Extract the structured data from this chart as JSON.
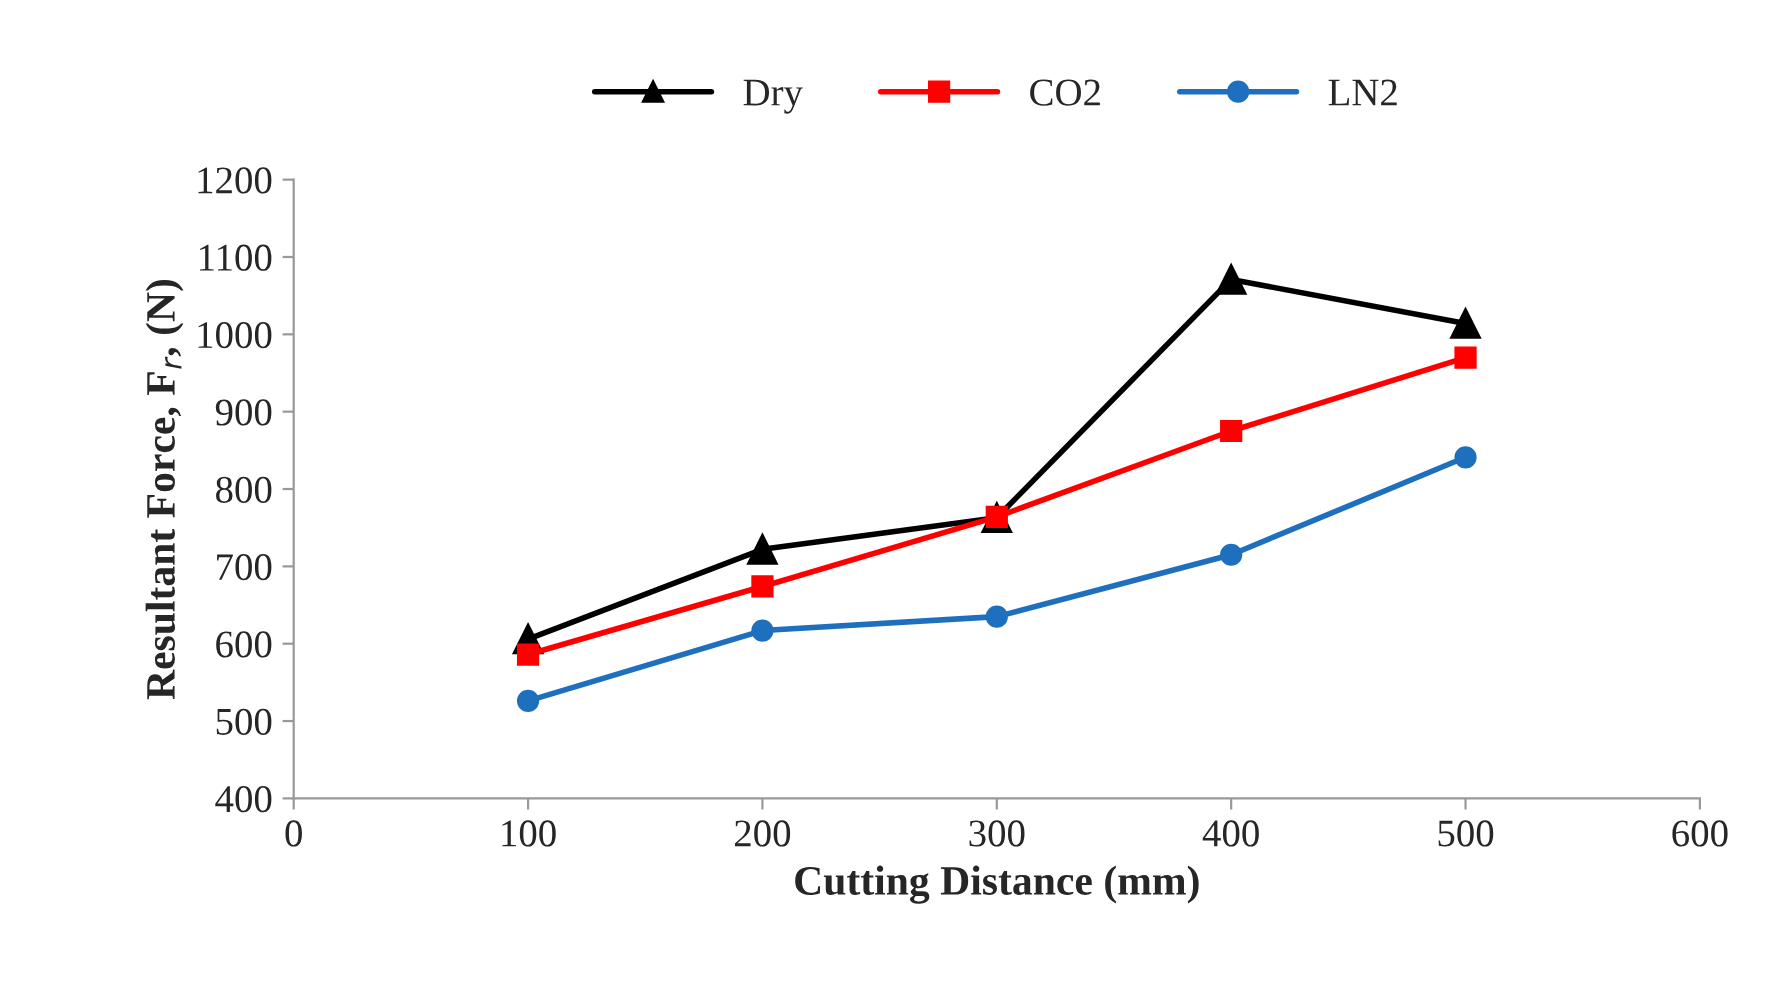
{
  "chart_data": {
    "type": "line",
    "xlabel": "Cutting Distance (mm)",
    "ylabel": "Resultant Force, F$_{r}$, (N)",
    "x": [
      100,
      200,
      300,
      400,
      500
    ],
    "series": [
      {
        "name": "Dry",
        "color": "#000000",
        "marker": "triangle",
        "values": [
          606,
          722,
          763,
          1071,
          1014
        ]
      },
      {
        "name": "CO2",
        "color": "#ff0000",
        "marker": "square",
        "values": [
          586,
          674,
          764,
          875,
          970
        ]
      },
      {
        "name": "LN2",
        "color": "#1f6fbf",
        "marker": "circle",
        "values": [
          526,
          617,
          635,
          715,
          841
        ]
      }
    ],
    "xlim": [
      0,
      600
    ],
    "xticks": [
      0,
      100,
      200,
      300,
      400,
      500,
      600
    ],
    "ylim": [
      400,
      1200
    ],
    "yticks": [
      400,
      500,
      600,
      700,
      800,
      900,
      1000,
      1100,
      1200
    ],
    "grid": false,
    "legend": "top",
    "line_style": "solid"
  }
}
